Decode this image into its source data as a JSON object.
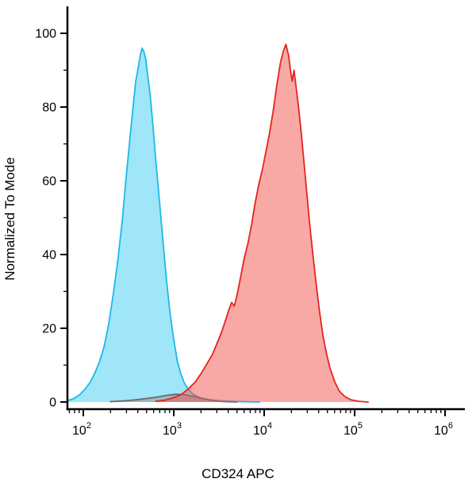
{
  "chart_data": {
    "type": "area",
    "chart_kind": "flow-cytometry-histogram",
    "title": "",
    "xlabel": "CD324 APC",
    "ylabel": "Normalized To Mode",
    "x_scale": "log10",
    "x_domain_log10": [
      1.83,
      6.18
    ],
    "ylim": [
      0,
      100
    ],
    "grid": false,
    "legend": "none",
    "x_major_ticks": [
      {
        "log10": 2,
        "base": "10",
        "exp": "2"
      },
      {
        "log10": 3,
        "base": "10",
        "exp": "3"
      },
      {
        "log10": 4,
        "base": "10",
        "exp": "4"
      },
      {
        "log10": 5,
        "base": "10",
        "exp": "5"
      },
      {
        "log10": 6,
        "base": "10",
        "exp": "6"
      }
    ],
    "y_major_ticks": [
      0,
      20,
      40,
      60,
      80,
      100
    ],
    "y_minor_ticks": [
      10,
      30,
      50,
      70,
      90
    ],
    "series": [
      {
        "name": "cyan-histogram",
        "peak_log10x": 2.65,
        "peak_x_approx": 450,
        "peak_y": 96,
        "stroke": "#1db9e8",
        "fill": "#3ecdf2",
        "fill_opacity": 0.5,
        "points": [
          [
            1.83,
            0.4
          ],
          [
            1.9,
            1
          ],
          [
            1.96,
            2
          ],
          [
            2.02,
            3.5
          ],
          [
            2.08,
            5.5
          ],
          [
            2.13,
            8
          ],
          [
            2.18,
            11
          ],
          [
            2.23,
            15
          ],
          [
            2.28,
            21
          ],
          [
            2.33,
            29
          ],
          [
            2.38,
            38
          ],
          [
            2.43,
            49
          ],
          [
            2.47,
            60
          ],
          [
            2.51,
            70
          ],
          [
            2.55,
            80
          ],
          [
            2.58,
            87
          ],
          [
            2.61,
            91
          ],
          [
            2.63,
            94
          ],
          [
            2.65,
            96
          ],
          [
            2.67,
            95
          ],
          [
            2.69,
            93
          ],
          [
            2.71,
            89
          ],
          [
            2.74,
            83
          ],
          [
            2.77,
            75
          ],
          [
            2.8,
            66
          ],
          [
            2.84,
            55
          ],
          [
            2.88,
            44
          ],
          [
            2.92,
            33
          ],
          [
            2.96,
            24
          ],
          [
            3.0,
            17
          ],
          [
            3.04,
            11
          ],
          [
            3.08,
            7.5
          ],
          [
            3.12,
            5
          ],
          [
            3.17,
            3.2
          ],
          [
            3.22,
            2
          ],
          [
            3.3,
            1.1
          ],
          [
            3.4,
            0.6
          ],
          [
            3.55,
            0.3
          ],
          [
            3.75,
            0.1
          ],
          [
            3.95,
            0
          ]
        ]
      },
      {
        "name": "gray-baseline-histogram",
        "peak_log10x": 3.02,
        "peak_x_approx": 1050,
        "peak_y": 2,
        "stroke": "#6a6a6a",
        "fill": "#9a9a9a",
        "fill_opacity": 0.6,
        "points": [
          [
            2.3,
            0.1
          ],
          [
            2.5,
            0.4
          ],
          [
            2.65,
            0.8
          ],
          [
            2.8,
            1.3
          ],
          [
            2.92,
            1.8
          ],
          [
            3.02,
            2.1
          ],
          [
            3.12,
            2.0
          ],
          [
            3.22,
            1.5
          ],
          [
            3.32,
            0.9
          ],
          [
            3.42,
            0.4
          ],
          [
            3.55,
            0.1
          ],
          [
            3.7,
            0
          ]
        ]
      },
      {
        "name": "red-histogram",
        "peak_log10x": 4.24,
        "peak_x_approx": 17000,
        "peak_y": 97,
        "stroke": "#e5241e",
        "fill": "#f2534c",
        "fill_opacity": 0.5,
        "points": [
          [
            2.8,
            0.2
          ],
          [
            2.9,
            0.5
          ],
          [
            3.0,
            1.2
          ],
          [
            3.08,
            2
          ],
          [
            3.16,
            3.5
          ],
          [
            3.24,
            5.5
          ],
          [
            3.31,
            8
          ],
          [
            3.37,
            10.5
          ],
          [
            3.43,
            13
          ],
          [
            3.48,
            16
          ],
          [
            3.53,
            19
          ],
          [
            3.57,
            22
          ],
          [
            3.61,
            25
          ],
          [
            3.64,
            27
          ],
          [
            3.67,
            26
          ],
          [
            3.7,
            29
          ],
          [
            3.74,
            34
          ],
          [
            3.78,
            39
          ],
          [
            3.82,
            43
          ],
          [
            3.86,
            48
          ],
          [
            3.9,
            54
          ],
          [
            3.94,
            59
          ],
          [
            3.98,
            63
          ],
          [
            4.02,
            68
          ],
          [
            4.06,
            73
          ],
          [
            4.1,
            79
          ],
          [
            4.14,
            86
          ],
          [
            4.18,
            92
          ],
          [
            4.21,
            95
          ],
          [
            4.24,
            97
          ],
          [
            4.27,
            94
          ],
          [
            4.29,
            90
          ],
          [
            4.31,
            87
          ],
          [
            4.33,
            90
          ],
          [
            4.35,
            86
          ],
          [
            4.38,
            80
          ],
          [
            4.41,
            73
          ],
          [
            4.44,
            65
          ],
          [
            4.47,
            57
          ],
          [
            4.5,
            49
          ],
          [
            4.53,
            42
          ],
          [
            4.57,
            33
          ],
          [
            4.61,
            25
          ],
          [
            4.65,
            18
          ],
          [
            4.69,
            13
          ],
          [
            4.73,
            9
          ],
          [
            4.78,
            5.5
          ],
          [
            4.83,
            3
          ],
          [
            4.89,
            1.5
          ],
          [
            4.96,
            0.6
          ],
          [
            5.05,
            0.2
          ],
          [
            5.15,
            0
          ]
        ]
      }
    ]
  }
}
